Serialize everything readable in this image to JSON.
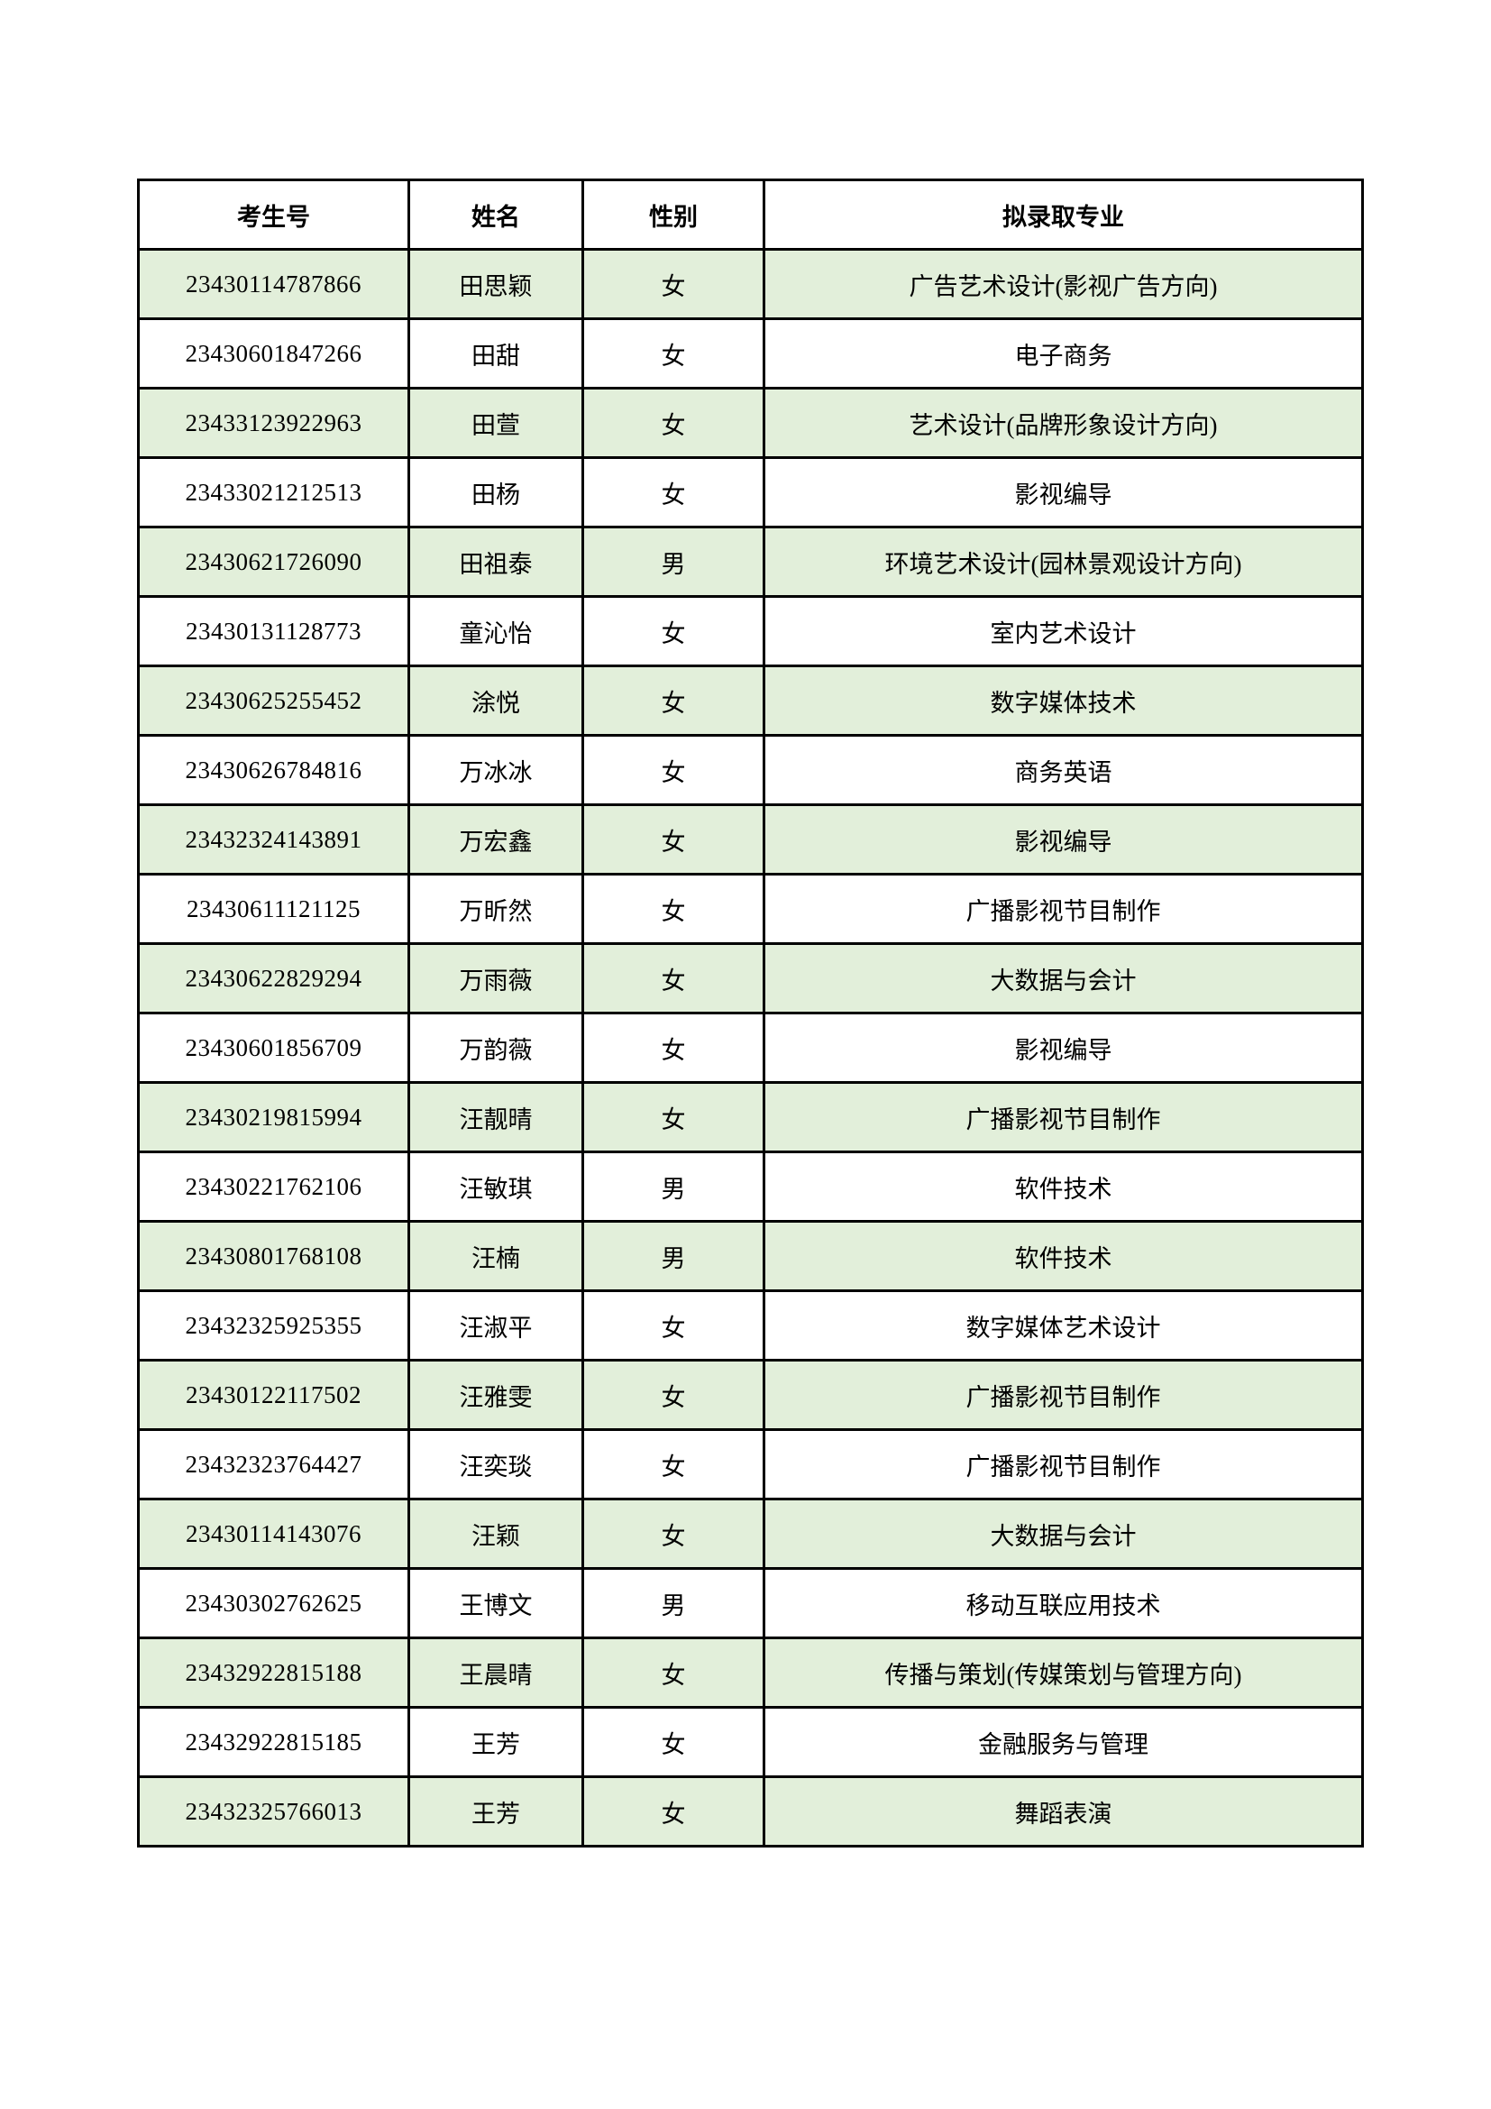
{
  "colors": {
    "stripe": "#e2efda",
    "border": "#000000"
  },
  "table": {
    "headers": [
      "考生号",
      "姓名",
      "性别",
      "拟录取专业"
    ],
    "rows": [
      [
        "23430114787866",
        "田思颖",
        "女",
        "广告艺术设计(影视广告方向)"
      ],
      [
        "23430601847266",
        "田甜",
        "女",
        "电子商务"
      ],
      [
        "23433123922963",
        "田萱",
        "女",
        "艺术设计(品牌形象设计方向)"
      ],
      [
        "23433021212513",
        "田杨",
        "女",
        "影视编导"
      ],
      [
        "23430621726090",
        "田祖泰",
        "男",
        "环境艺术设计(园林景观设计方向)"
      ],
      [
        "23430131128773",
        "童沁怡",
        "女",
        "室内艺术设计"
      ],
      [
        "23430625255452",
        "涂悦",
        "女",
        "数字媒体技术"
      ],
      [
        "23430626784816",
        "万冰冰",
        "女",
        "商务英语"
      ],
      [
        "23432324143891",
        "万宏鑫",
        "女",
        "影视编导"
      ],
      [
        "23430611121125",
        "万昕然",
        "女",
        "广播影视节目制作"
      ],
      [
        "23430622829294",
        "万雨薇",
        "女",
        "大数据与会计"
      ],
      [
        "23430601856709",
        "万韵薇",
        "女",
        "影视编导"
      ],
      [
        "23430219815994",
        "汪靓晴",
        "女",
        "广播影视节目制作"
      ],
      [
        "23430221762106",
        "汪敏琪",
        "男",
        "软件技术"
      ],
      [
        "23430801768108",
        "汪楠",
        "男",
        "软件技术"
      ],
      [
        "23432325925355",
        "汪淑平",
        "女",
        "数字媒体艺术设计"
      ],
      [
        "23430122117502",
        "汪雅雯",
        "女",
        "广播影视节目制作"
      ],
      [
        "23432323764427",
        "汪奕琰",
        "女",
        "广播影视节目制作"
      ],
      [
        "23430114143076",
        "汪颖",
        "女",
        "大数据与会计"
      ],
      [
        "23430302762625",
        "王博文",
        "男",
        "移动互联应用技术"
      ],
      [
        "23432922815188",
        "王晨晴",
        "女",
        "传播与策划(传媒策划与管理方向)"
      ],
      [
        "23432922815185",
        "王芳",
        "女",
        "金融服务与管理"
      ],
      [
        "23432325766013",
        "王芳",
        "女",
        "舞蹈表演"
      ]
    ]
  }
}
